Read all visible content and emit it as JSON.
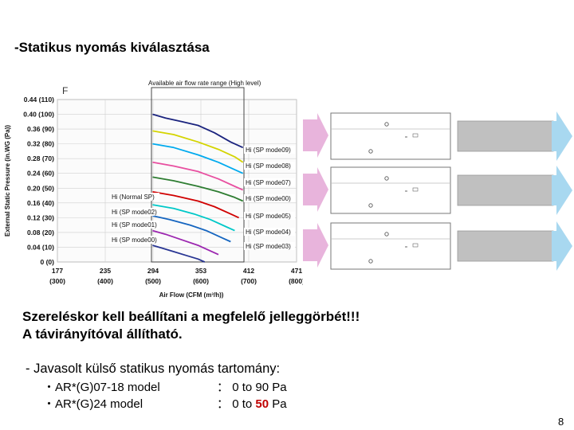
{
  "title": "-Statikus nyomás kiválasztása",
  "chart_data": {
    "type": "line",
    "corner_label": "F",
    "header_note": "Available air flow rate range (High level)",
    "ylabel": "External Static Pressure (in.WG (Pa))",
    "xlabel": "Air Flow (CFM (m³/h))",
    "x_ticks": [
      {
        "top": "177",
        "bottom": "(300)"
      },
      {
        "top": "235",
        "bottom": "(400)"
      },
      {
        "top": "294",
        "bottom": "(500)"
      },
      {
        "top": "353",
        "bottom": "(600)"
      },
      {
        "top": "412",
        "bottom": "(700)"
      },
      {
        "top": "471",
        "bottom": "(800)"
      }
    ],
    "y_ticks": [
      "0.44 (110)",
      "0.40 (100)",
      "0.36 (90)",
      "0.32 (80)",
      "0.28 (70)",
      "0.24 (60)",
      "0.20 (50)",
      "0.16 (40)",
      "0.12 (30)",
      "0.08 (20)",
      "0.04 (10)",
      "0 (0)"
    ],
    "xlim": [
      177,
      471
    ],
    "ylim": [
      0,
      0.44
    ],
    "grid": true,
    "series": [
      {
        "name": "Hi (SP mode09)",
        "color": "#1a237e",
        "x": [
          294,
          310,
          330,
          350,
          370,
          390,
          405
        ],
        "y": [
          0.4,
          0.39,
          0.38,
          0.37,
          0.35,
          0.325,
          0.31
        ]
      },
      {
        "name": "Hi (SP mode08)",
        "color": "#d4d400",
        "x": [
          294,
          320,
          350,
          375,
          395,
          405
        ],
        "y": [
          0.355,
          0.345,
          0.325,
          0.305,
          0.285,
          0.27
        ]
      },
      {
        "name": "Hi (SP mode07)",
        "color": "#00aaee",
        "x": [
          294,
          320,
          350,
          375,
          395,
          405
        ],
        "y": [
          0.32,
          0.31,
          0.29,
          0.27,
          0.25,
          0.24
        ]
      },
      {
        "name": "Hi (Normal SP)",
        "color": "#e84fa0",
        "x": [
          294,
          320,
          350,
          375,
          395,
          405
        ],
        "y": [
          0.27,
          0.26,
          0.245,
          0.225,
          0.205,
          0.195
        ]
      },
      {
        "name": "Hi (SP mode00)",
        "color": "#2e7d32",
        "x": [
          294,
          320,
          350,
          375,
          395,
          405
        ],
        "y": [
          0.23,
          0.22,
          0.205,
          0.19,
          0.175,
          0.165
        ]
      },
      {
        "name": "Hi (SP mode02)",
        "color": "#d00000",
        "x": [
          294,
          320,
          350,
          370,
          390,
          400
        ],
        "y": [
          0.19,
          0.18,
          0.165,
          0.15,
          0.13,
          0.12
        ]
      },
      {
        "name": "Hi (SP mode05)",
        "color": "#00c8c8",
        "x": [
          294,
          320,
          345,
          365,
          385,
          395
        ],
        "y": [
          0.155,
          0.145,
          0.13,
          0.115,
          0.095,
          0.085
        ]
      },
      {
        "name": "Hi (SP mode01)",
        "color": "#1565c0",
        "x": [
          294,
          315,
          340,
          360,
          380,
          390
        ],
        "y": [
          0.125,
          0.115,
          0.1,
          0.085,
          0.065,
          0.055
        ]
      },
      {
        "name": "Hi (SP mode04)",
        "color": "#9c27b0",
        "x": [
          294,
          310,
          330,
          350,
          365,
          375
        ],
        "y": [
          0.085,
          0.075,
          0.06,
          0.045,
          0.03,
          0.02
        ]
      },
      {
        "name": "Hi (SP mode03)",
        "color": "#283593",
        "x": [
          294,
          305,
          320,
          335,
          350,
          358
        ],
        "y": [
          0.045,
          0.038,
          0.028,
          0.018,
          0.008,
          0.0
        ]
      }
    ],
    "left_labels": [
      "Hi (Normal SP)",
      "Hi (SP mode02)",
      "Hi (SP mode01)",
      "Hi (SP mode00)"
    ],
    "right_labels": [
      "Hi (SP mode09)",
      "Hi (SP mode08)",
      "Hi (SP mode07)",
      "Hi (SP mode00)",
      "Hi (SP mode05)",
      "Hi (SP mode04)",
      "Hi (SP mode03)"
    ]
  },
  "statements": {
    "line1": "Szereléskor kell beállítani a megfelelő jelleggörbét!!!",
    "line2": "A távirányítóval állítható."
  },
  "recommend": {
    "heading": "- Javasolt külső statikus nyomás tartomány:",
    "rows": [
      {
        "model": "・AR*(G)07-18 model",
        "sep": "：",
        "range_prefix": "0 to ",
        "range_max": "90",
        "unit": " Pa",
        "highlight": false
      },
      {
        "model": "・AR*(G)24  model",
        "sep": "：",
        "range_prefix": "0 to ",
        "range_max": "50",
        "unit": " Pa",
        "highlight": true
      }
    ]
  },
  "page_number": "8",
  "colors": {
    "arrow_pink": "#e8b4dc",
    "arrow_blue": "#a8d8f0",
    "duct_gray": "#c0c0c0"
  }
}
